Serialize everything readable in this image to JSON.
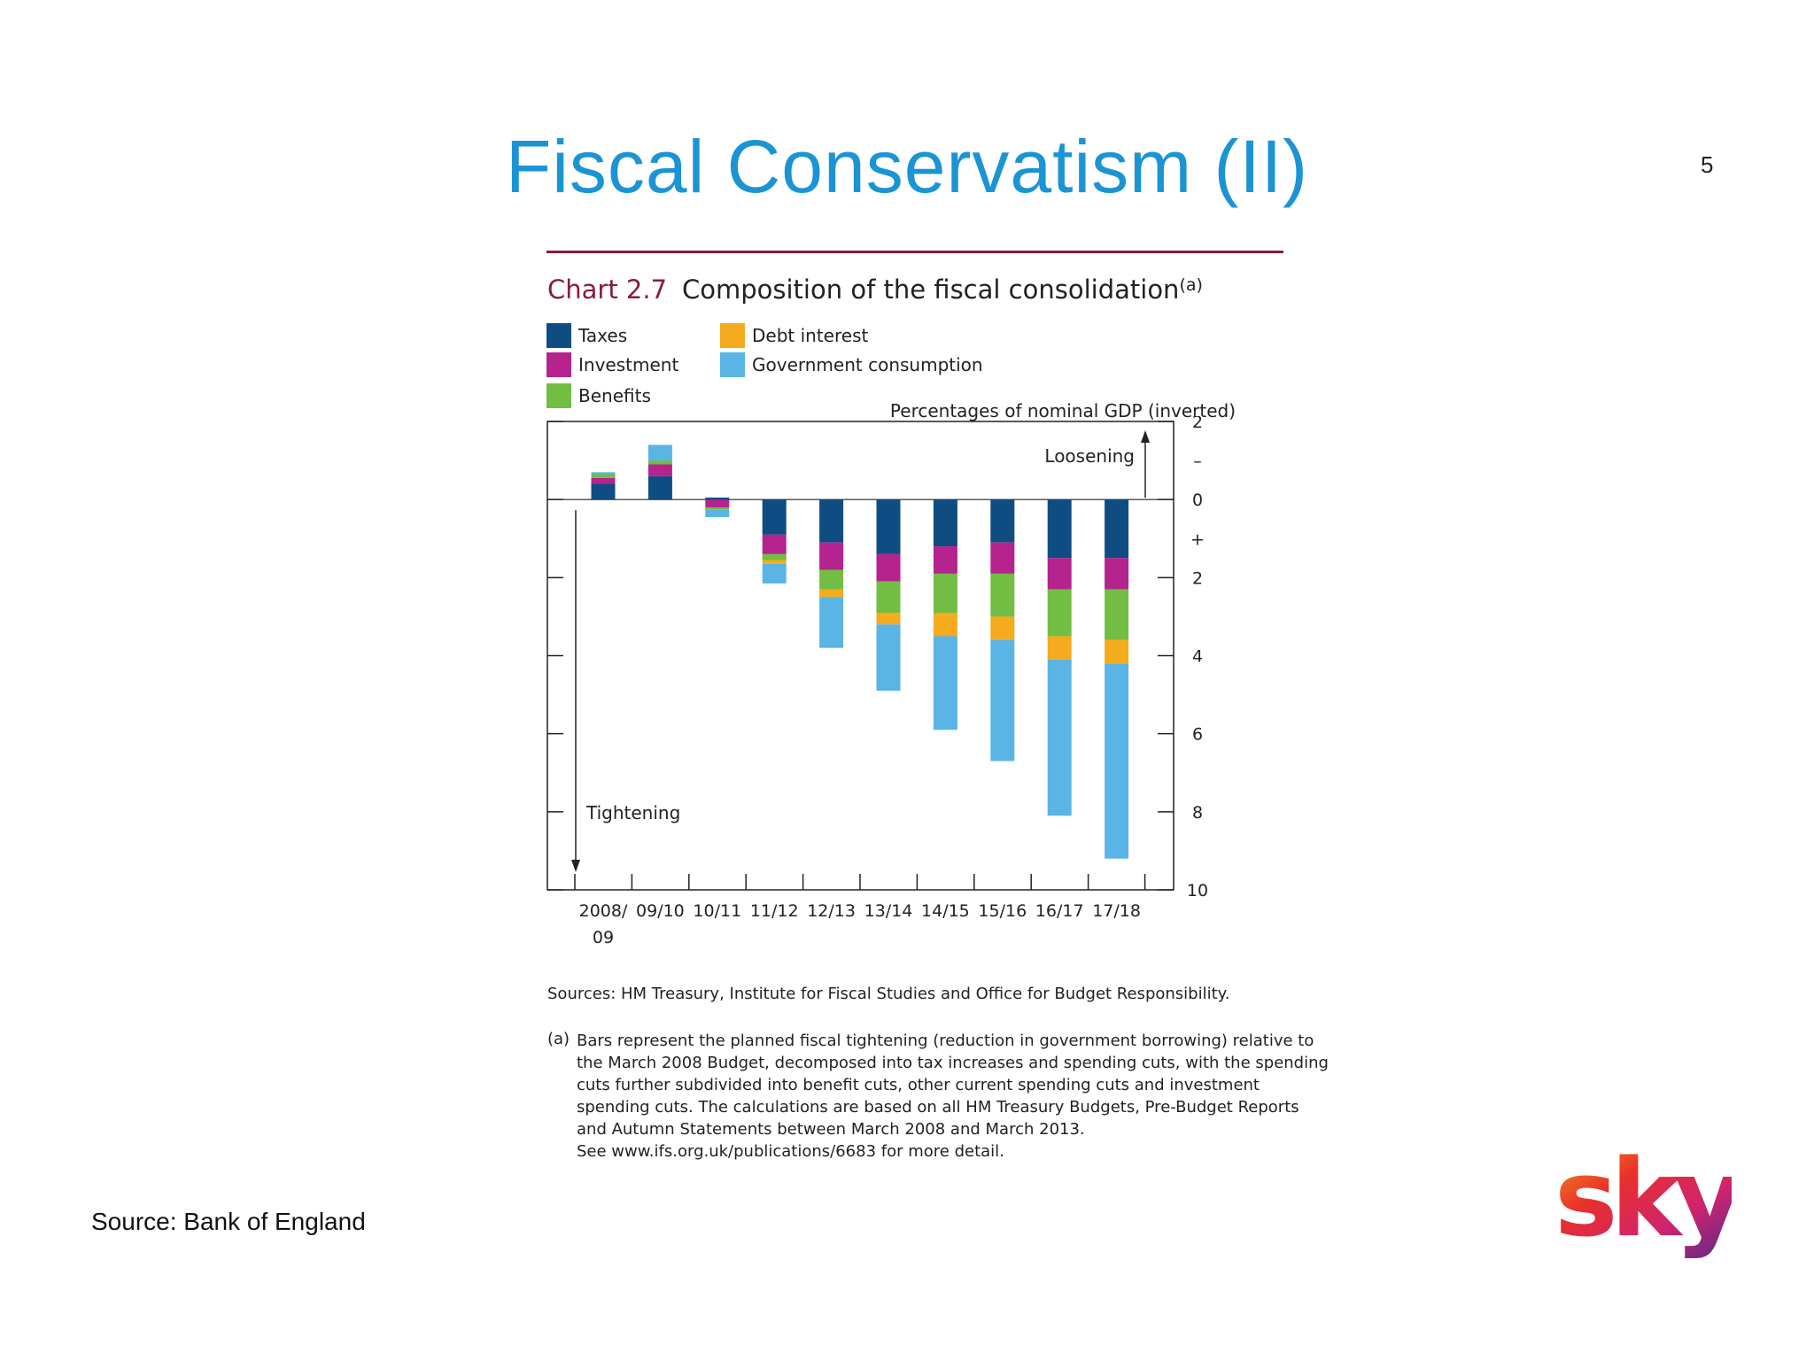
{
  "slide": {
    "title": "Fiscal Conservatism (II)",
    "page_number": "5",
    "source": "Source: Bank of England"
  },
  "figure": {
    "label": "Chart 2.7",
    "heading": "Composition of the fiscal consolidation",
    "heading_marker": "(a)",
    "sources": "Sources: HM Treasury, Institute for Fiscal Studies and Office for Budget Responsibility.",
    "footnote_marker": "(a)",
    "footnote_lines": [
      "Bars represent the planned fiscal tightening (reduction in government borrowing) relative to",
      "the March 2008 Budget, decomposed into tax increases and spending cuts, with the spending",
      "cuts further subdivided into benefit cuts, other current spending cuts and investment",
      "spending cuts.  The calculations are based on all HM Treasury Budgets, Pre-Budget Reports",
      "and Autumn Statements between March 2008 and March 2013.",
      "See www.ifs.org.uk/publications/6683 for more detail."
    ]
  },
  "logo": {
    "text": "sky"
  },
  "chart_data": {
    "type": "bar",
    "stacked": true,
    "y_inverted": true,
    "title": "Composition of the fiscal consolidation",
    "ylabel": "Percentages of nominal GDP (inverted)",
    "ylim": [
      -2,
      10
    ],
    "y_ticks": [
      "2",
      "–",
      "0",
      "+",
      "2",
      "4",
      "6",
      "8",
      "10"
    ],
    "annotations": [
      "Loosening",
      "Tightening"
    ],
    "legend_position": "top-left",
    "grid": false,
    "categories": [
      "2008/09",
      "09/10",
      "10/11",
      "11/12",
      "12/13",
      "13/14",
      "14/15",
      "15/16",
      "16/17",
      "17/18"
    ],
    "category_labels": [
      [
        "2008/",
        "09"
      ],
      [
        "09/10"
      ],
      [
        "10/11"
      ],
      [
        "11/12"
      ],
      [
        "12/13"
      ],
      [
        "13/14"
      ],
      [
        "14/15"
      ],
      [
        "15/16"
      ],
      [
        "16/17"
      ],
      [
        "17/18"
      ]
    ],
    "series": [
      {
        "name": "Taxes",
        "color": "#0f4c81",
        "values": [
          -0.4,
          -0.6,
          -0.05,
          0.9,
          1.1,
          1.4,
          1.2,
          1.1,
          1.5,
          1.5
        ]
      },
      {
        "name": "Investment",
        "color": "#b4238e",
        "values": [
          -0.15,
          -0.3,
          0.2,
          0.5,
          0.7,
          0.7,
          0.7,
          0.8,
          0.8,
          0.8
        ]
      },
      {
        "name": "Benefits",
        "color": "#72bd43",
        "values": [
          -0.1,
          -0.1,
          0.05,
          0.15,
          0.5,
          0.8,
          1.0,
          1.1,
          1.2,
          1.3
        ]
      },
      {
        "name": "Debt interest",
        "color": "#f5ab1e",
        "values": [
          0,
          0,
          0,
          0.1,
          0.2,
          0.3,
          0.6,
          0.6,
          0.6,
          0.6
        ]
      },
      {
        "name": "Government consumption",
        "color": "#5ab4e5",
        "values": [
          -0.05,
          -0.4,
          0.2,
          0.5,
          1.3,
          1.7,
          2.4,
          3.1,
          4.0,
          5.0
        ]
      }
    ]
  }
}
